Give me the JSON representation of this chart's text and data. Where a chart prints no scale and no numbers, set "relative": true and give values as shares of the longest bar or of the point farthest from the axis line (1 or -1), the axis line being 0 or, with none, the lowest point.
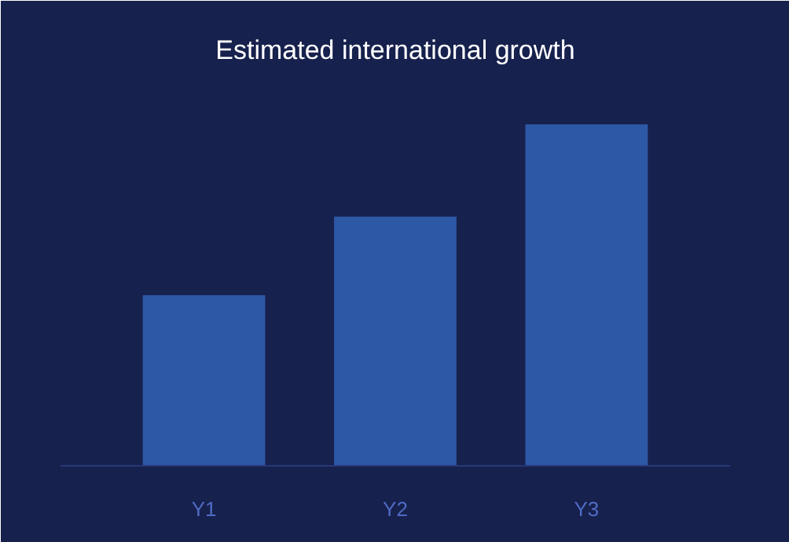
{
  "chart_data": {
    "type": "bar",
    "title": "Estimated international growth",
    "relative": true,
    "categories": [
      "Y1",
      "Y2",
      "Y3"
    ],
    "values": [
      0.5,
      0.73,
      1
    ],
    "color": "#2d58a6"
  }
}
